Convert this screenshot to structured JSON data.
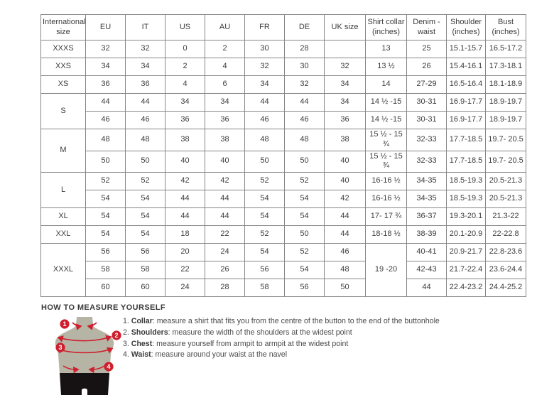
{
  "colors": {
    "accent_red": "#cf1f2e",
    "border_gray": "#868686",
    "body_olive": "#b6b5a5",
    "shorts_black": "#161214"
  },
  "table": {
    "headers": [
      "International size",
      "EU",
      "IT",
      "US",
      "AU",
      "FR",
      "DE",
      "UK size",
      "Shirt collar (inches)",
      "Denim - waist",
      "Shoulder (inches)",
      "Bust (inches)"
    ],
    "rows": [
      [
        "XXXS",
        "32",
        "32",
        "0",
        "2",
        "30",
        "28",
        "",
        "13",
        "25",
        "15.1-15.7",
        "16.5-17.2"
      ],
      [
        "XXS",
        "34",
        "34",
        "2",
        "4",
        "32",
        "30",
        "32",
        "13 ½",
        "26",
        "15.4-16.1",
        "17.3-18.1"
      ],
      [
        "XS",
        "36",
        "36",
        "4",
        "6",
        "34",
        "32",
        "34",
        "14",
        "27-29",
        "16.5-16.4",
        "18.1-18.9"
      ],
      [
        {
          "t": "S",
          "rs": 2
        },
        "44",
        "44",
        "34",
        "34",
        "44",
        "44",
        "34",
        "14 ½ -15",
        "30-31",
        "16.9-17.7",
        "18.9-19.7"
      ],
      [
        "46",
        "46",
        "36",
        "36",
        "46",
        "46",
        "36",
        "14 ½ -15",
        "30-31",
        "16.9-17.7",
        "18.9-19.7"
      ],
      [
        {
          "t": "M",
          "rs": 2
        },
        "48",
        "48",
        "38",
        "38",
        "48",
        "48",
        "38",
        "15 ½ - 15 ¾",
        "32-33",
        "17.7-18.5",
        "19.7- 20.5"
      ],
      [
        "50",
        "50",
        "40",
        "40",
        "50",
        "50",
        "40",
        "15 ½ - 15 ¾",
        "32-33",
        "17.7-18.5",
        "19.7- 20.5"
      ],
      [
        {
          "t": "L",
          "rs": 2
        },
        "52",
        "52",
        "42",
        "42",
        "52",
        "52",
        "40",
        "16-16 ½",
        "34-35",
        "18.5-19.3",
        "20.5-21.3"
      ],
      [
        "54",
        "54",
        "44",
        "44",
        "54",
        "54",
        "42",
        "16-16 ½",
        "34-35",
        "18.5-19.3",
        "20.5-21.3"
      ],
      [
        "XL",
        "54",
        "54",
        "44",
        "44",
        "54",
        "54",
        "44",
        "17- 17 ¾",
        "36-37",
        "19.3-20.1",
        "21.3-22"
      ],
      [
        "XXL",
        "54",
        "54",
        "18",
        "22",
        "52",
        "50",
        "44",
        "18-18 ½",
        "38-39",
        "20.1-20.9",
        "22-22.8"
      ],
      [
        {
          "t": "XXXL",
          "rs": 3
        },
        "56",
        "56",
        "20",
        "24",
        "54",
        "52",
        "46",
        {
          "t": "19 -20",
          "rs": 3
        },
        "40-41",
        "20.9-21.7",
        "22.8-23.6"
      ],
      [
        "58",
        "58",
        "22",
        "26",
        "56",
        "54",
        "48",
        "42-43",
        "21.7-22.4",
        "23.6-24.4"
      ],
      [
        "60",
        "60",
        "24",
        "28",
        "58",
        "56",
        "50",
        "44",
        "22.4-23.2",
        "24.4-25.2"
      ]
    ]
  },
  "measure": {
    "title": "HOW TO MEASURE YOURSELF",
    "badges": [
      "1",
      "2",
      "3",
      "4"
    ],
    "items": [
      {
        "num": "1.",
        "label": "Collar",
        "text": ": measure a shirt that fits you from the centre of the button to the end of the buttonhole"
      },
      {
        "num": "2.",
        "label": "Shoulders",
        "text": ": measure the width of the shoulders at the widest point"
      },
      {
        "num": "3.",
        "label": "Chest",
        "text": ": measure yourself from armpit to armpit at the widest point"
      },
      {
        "num": "4.",
        "label": "Waist",
        "text": ": measure around your waist at the navel"
      }
    ]
  }
}
